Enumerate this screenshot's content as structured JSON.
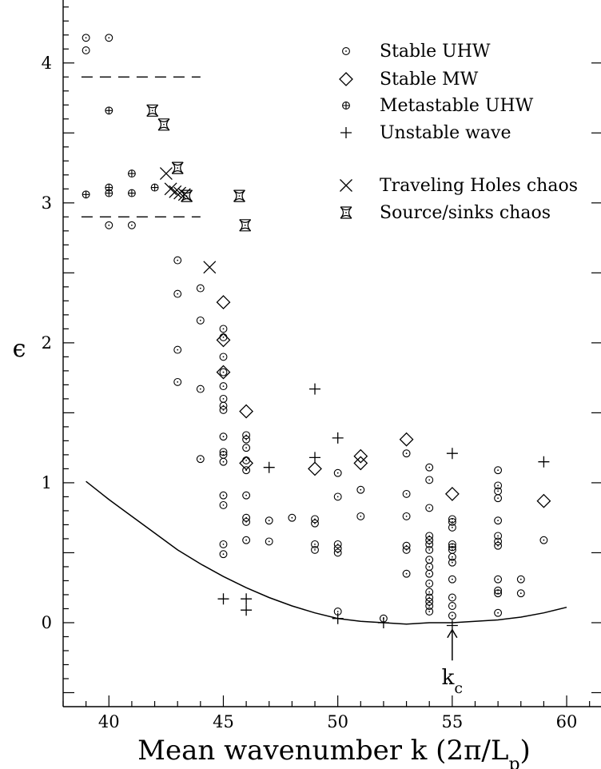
{
  "chart_data": {
    "type": "scatter",
    "xlabel_main": "Mean wavenumber k (2π/L",
    "xlabel_sub": "p",
    "xlabel_close": ")",
    "ylabel": "ϵ",
    "xlim": [
      38,
      61.5
    ],
    "ylim": [
      -0.6,
      4.45
    ],
    "x_ticks": [
      40,
      45,
      50,
      55,
      60
    ],
    "y_ticks": [
      0,
      1,
      2,
      3,
      4
    ],
    "grid": false,
    "legend_position": "top-right",
    "series": [
      {
        "name": "Stable UHW",
        "marker": "circle-dot",
        "points": [
          [
            39,
            4.18
          ],
          [
            39,
            4.09
          ],
          [
            40,
            4.18
          ],
          [
            40,
            2.84
          ],
          [
            41,
            2.84
          ],
          [
            43,
            2.59
          ],
          [
            43,
            2.35
          ],
          [
            43,
            1.95
          ],
          [
            43,
            1.72
          ],
          [
            44,
            2.39
          ],
          [
            44,
            2.16
          ],
          [
            44,
            1.67
          ],
          [
            44,
            1.17
          ],
          [
            45,
            2.1
          ],
          [
            45,
            2.04
          ],
          [
            45,
            1.9
          ],
          [
            45,
            1.79
          ],
          [
            45,
            1.69
          ],
          [
            45,
            1.6
          ],
          [
            45,
            1.55
          ],
          [
            45,
            1.52
          ],
          [
            45,
            1.33
          ],
          [
            45,
            1.22
          ],
          [
            45,
            1.2
          ],
          [
            45,
            1.15
          ],
          [
            45,
            0.91
          ],
          [
            45,
            0.84
          ],
          [
            45,
            0.56
          ],
          [
            45,
            0.49
          ],
          [
            46,
            1.34
          ],
          [
            46,
            1.31
          ],
          [
            46,
            1.25
          ],
          [
            46,
            1.16
          ],
          [
            46,
            1.09
          ],
          [
            46,
            0.91
          ],
          [
            46,
            0.75
          ],
          [
            46,
            0.72
          ],
          [
            46,
            0.59
          ],
          [
            47,
            0.73
          ],
          [
            47,
            0.58
          ],
          [
            48,
            0.75
          ],
          [
            49,
            0.74
          ],
          [
            49,
            0.71
          ],
          [
            49,
            0.56
          ],
          [
            49,
            0.52
          ],
          [
            50,
            1.07
          ],
          [
            50,
            0.9
          ],
          [
            50,
            0.56
          ],
          [
            50,
            0.53
          ],
          [
            50,
            0.5
          ],
          [
            50,
            0.08
          ],
          [
            51,
            0.95
          ],
          [
            51,
            0.76
          ],
          [
            52,
            0.03
          ],
          [
            53,
            1.21
          ],
          [
            53,
            0.92
          ],
          [
            53,
            0.76
          ],
          [
            53,
            0.55
          ],
          [
            53,
            0.52
          ],
          [
            53,
            0.35
          ],
          [
            54,
            1.11
          ],
          [
            54,
            1.02
          ],
          [
            54,
            0.82
          ],
          [
            54,
            0.62
          ],
          [
            54,
            0.59
          ],
          [
            54,
            0.56
          ],
          [
            54,
            0.52
          ],
          [
            54,
            0.45
          ],
          [
            54,
            0.4
          ],
          [
            54,
            0.35
          ],
          [
            54,
            0.28
          ],
          [
            54,
            0.22
          ],
          [
            54,
            0.18
          ],
          [
            54,
            0.15
          ],
          [
            54,
            0.12
          ],
          [
            54,
            0.08
          ],
          [
            55,
            0.74
          ],
          [
            55,
            0.72
          ],
          [
            55,
            0.68
          ],
          [
            55,
            0.56
          ],
          [
            55,
            0.54
          ],
          [
            55,
            0.52
          ],
          [
            55,
            0.47
          ],
          [
            55,
            0.43
          ],
          [
            55,
            0.31
          ],
          [
            55,
            0.18
          ],
          [
            55,
            0.12
          ],
          [
            55,
            0.05
          ],
          [
            57,
            1.09
          ],
          [
            57,
            0.98
          ],
          [
            57,
            0.94
          ],
          [
            57,
            0.89
          ],
          [
            57,
            0.73
          ],
          [
            57,
            0.62
          ],
          [
            57,
            0.58
          ],
          [
            57,
            0.55
          ],
          [
            57,
            0.31
          ],
          [
            57,
            0.23
          ],
          [
            57,
            0.21
          ],
          [
            57,
            0.07
          ],
          [
            58,
            0.31
          ],
          [
            58,
            0.21
          ],
          [
            59,
            0.59
          ]
        ]
      },
      {
        "name": "Stable MW",
        "marker": "diamond",
        "points": [
          [
            45,
            2.29
          ],
          [
            45,
            2.02
          ],
          [
            45,
            1.79
          ],
          [
            46,
            1.51
          ],
          [
            46,
            1.14
          ],
          [
            49,
            1.1
          ],
          [
            51,
            1.19
          ],
          [
            51,
            1.14
          ],
          [
            53,
            1.31
          ],
          [
            55,
            0.92
          ],
          [
            59,
            0.87
          ]
        ]
      },
      {
        "name": "Metastable UHW",
        "marker": "circle-plus",
        "points": [
          [
            39,
            3.06
          ],
          [
            40,
            3.66
          ],
          [
            40,
            3.11
          ],
          [
            40,
            3.07
          ],
          [
            41,
            3.21
          ],
          [
            41,
            3.07
          ],
          [
            42,
            3.11
          ]
        ]
      },
      {
        "name": "Unstable wave",
        "marker": "plus",
        "points": [
          [
            45,
            0.17
          ],
          [
            46,
            0.17
          ],
          [
            46,
            0.09
          ],
          [
            47,
            1.11
          ],
          [
            49,
            1.67
          ],
          [
            49,
            1.18
          ],
          [
            50,
            1.32
          ],
          [
            50,
            0.03
          ],
          [
            52,
            0.0
          ],
          [
            55,
            1.21
          ],
          [
            55,
            -0.02
          ],
          [
            59,
            1.15
          ]
        ]
      },
      {
        "name": "Traveling Holes chaos",
        "marker": "cross",
        "points": [
          [
            42.5,
            3.21
          ],
          [
            42.7,
            3.1
          ],
          [
            42.9,
            3.08
          ],
          [
            43.1,
            3.07
          ],
          [
            43.3,
            3.06
          ],
          [
            44.4,
            2.54
          ]
        ]
      },
      {
        "name": "Source/sinks chaos",
        "marker": "hourglass",
        "points": [
          [
            41.9,
            3.66
          ],
          [
            42.4,
            3.56
          ],
          [
            43,
            3.25
          ],
          [
            43.4,
            3.05
          ],
          [
            45.7,
            3.05
          ],
          [
            45.95,
            2.84
          ]
        ]
      }
    ],
    "neutral_curve": {
      "x": [
        39,
        40,
        41,
        42,
        43,
        44,
        45,
        46,
        47,
        48,
        49,
        50,
        51,
        52,
        53,
        54,
        55,
        56,
        57,
        58,
        59,
        60
      ],
      "y": [
        1.01,
        0.88,
        0.76,
        0.64,
        0.52,
        0.42,
        0.33,
        0.25,
        0.18,
        0.12,
        0.07,
        0.03,
        0.01,
        0.0,
        -0.01,
        0.0,
        0.0,
        0.01,
        0.02,
        0.04,
        0.07,
        0.11
      ]
    },
    "dashed_lines": [
      {
        "x": [
          38.8,
          44
        ],
        "y": 3.9
      },
      {
        "x": [
          38.8,
          44
        ],
        "y": 2.9
      }
    ],
    "annotation": {
      "x": 55,
      "y_tip": -0.05,
      "y_tail": -0.27,
      "text_main": "k",
      "text_sub": "c"
    }
  }
}
